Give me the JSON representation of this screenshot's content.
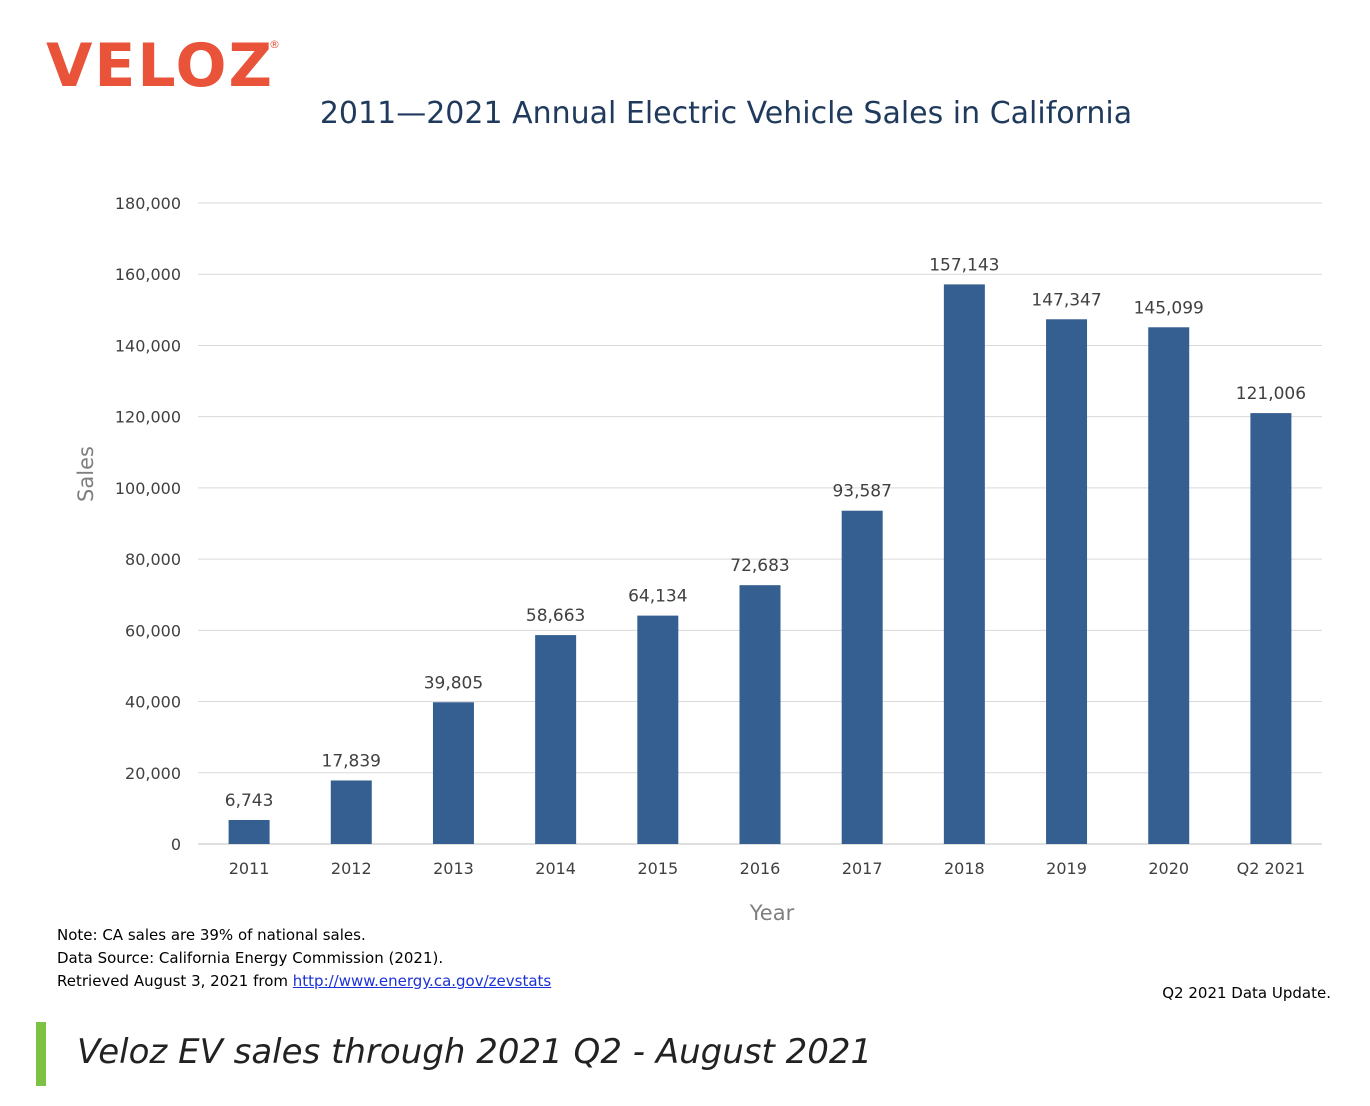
{
  "logo": {
    "text": "VELOZ",
    "mark": "®",
    "color": "#e8533a"
  },
  "chart_data": {
    "type": "bar",
    "title": "2011—2021 Annual Electric Vehicle Sales in California",
    "xlabel": "Year",
    "ylabel": "Sales",
    "categories": [
      "2011",
      "2012",
      "2013",
      "2014",
      "2015",
      "2016",
      "2017",
      "2018",
      "2019",
      "2020",
      "Q2 2021"
    ],
    "values": [
      6743,
      17839,
      39805,
      58663,
      64134,
      72683,
      93587,
      157143,
      147347,
      145099,
      121006
    ],
    "data_labels": [
      "6,743",
      "17,839",
      "39,805",
      "58,663",
      "64,134",
      "72,683",
      "93,587",
      "157,143",
      "147,347",
      "145,099",
      "121,006"
    ],
    "ylim": [
      0,
      180000
    ],
    "yticks": [
      0,
      20000,
      40000,
      60000,
      80000,
      100000,
      120000,
      140000,
      160000,
      180000
    ],
    "ytick_labels": [
      "0",
      "20,000",
      "40,000",
      "60,000",
      "80,000",
      "100,000",
      "120,000",
      "140,000",
      "160,000",
      "180,000"
    ],
    "grid": true,
    "bar_color": "#355f91"
  },
  "notes": {
    "line1": "Note: CA sales are 39%  of national sales.",
    "line2": "Data Source: California Energy Commission (2021).",
    "line3_prefix": "Retrieved August 3, 2021 from ",
    "link": "http://www.energy.ca.gov/zevstats "
  },
  "data_update": "Q2 2021 Data Update.",
  "caption": "Veloz EV sales through 2021 Q2 - August 2021",
  "colors": {
    "caption_bar": "#7dc242",
    "title": "#1f3a5c"
  }
}
